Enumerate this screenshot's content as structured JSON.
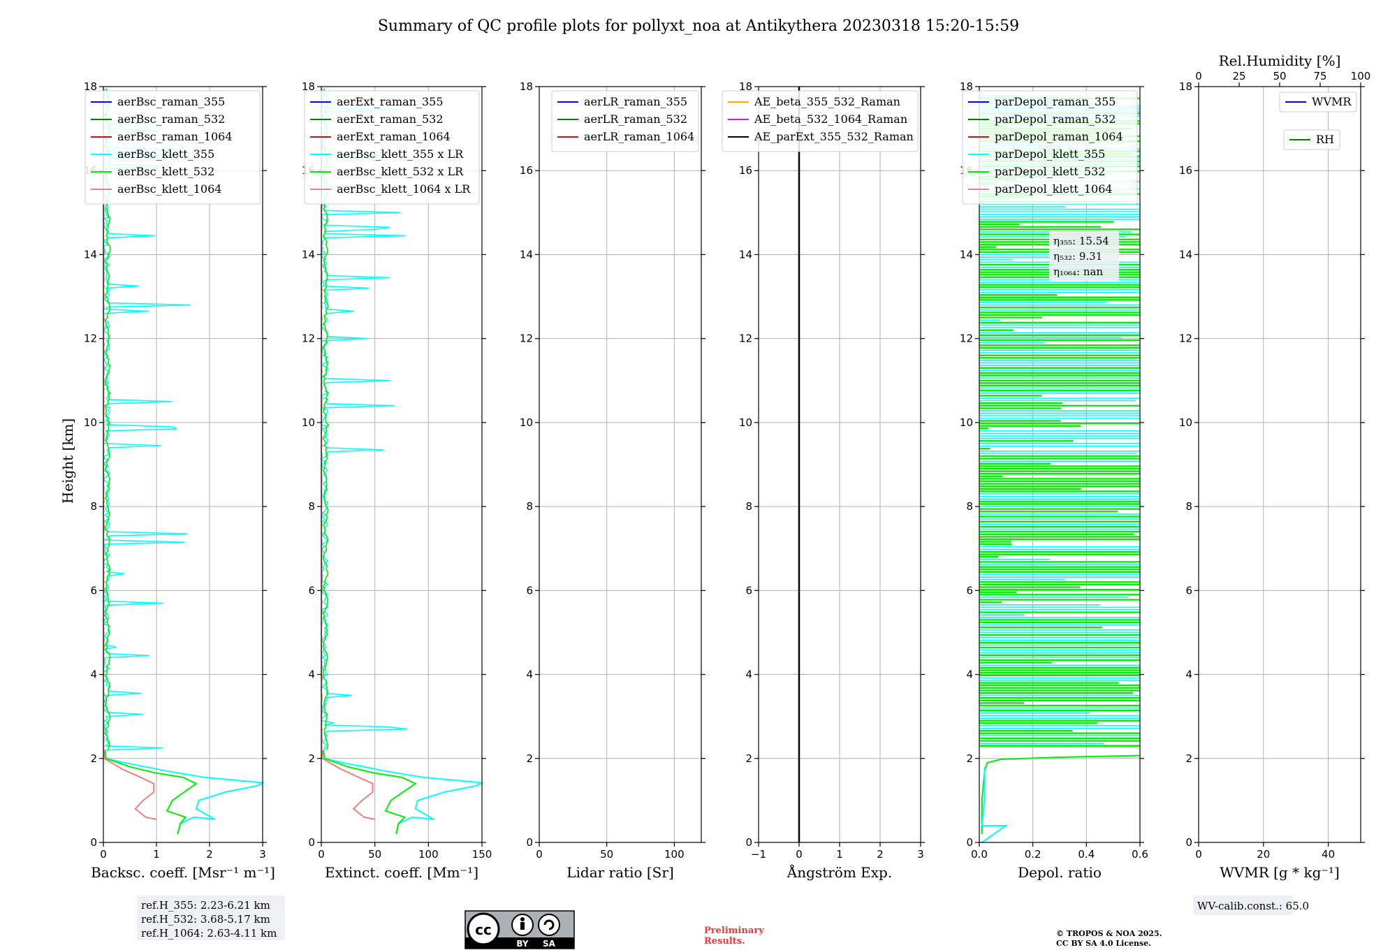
{
  "title": "Summary of QC profile plots for pollyxt_noa at Antikythera 20230318 15:20-15:59",
  "ylabel": "Height [km]",
  "yticks": [
    "0",
    "2",
    "4",
    "6",
    "8",
    "10",
    "12",
    "14",
    "16",
    "18"
  ],
  "chart_data": [
    {
      "type": "line",
      "xlabel": "Backsc. coeff. [Msr⁻¹ m⁻¹]",
      "xlim": [
        0,
        3
      ],
      "ylim": [
        0,
        18
      ],
      "xticks": [
        "0",
        "1",
        "2",
        "3"
      ],
      "legend_placement": "top-right",
      "legend": [
        "aerBsc_raman_355",
        "aerBsc_raman_532",
        "aerBsc_raman_1064",
        "aerBsc_klett_355",
        "aerBsc_klett_532",
        "aerBsc_klett_1064"
      ],
      "legend_colors": [
        "#0000ff",
        "#008000",
        "#ff0000",
        "#00ffff",
        "#00ee00",
        "#f08080"
      ],
      "series": [
        {
          "name": "aerBsc_klett_355",
          "color": "#00ffff",
          "kind": "cyan",
          "x": [
            1.4,
            1.45,
            1.7,
            2.1,
            1.75,
            1.8,
            2.3,
            2.9,
            3.0,
            1.9,
            1.2,
            0.4,
            0.05,
            0.03
          ],
          "y": [
            0.2,
            0.45,
            0.6,
            0.55,
            0.8,
            1.0,
            1.2,
            1.35,
            1.42,
            1.55,
            1.7,
            1.9,
            2.0,
            2.2
          ]
        },
        {
          "name": "aerBsc_klett_532",
          "color": "#00ee00",
          "kind": "green",
          "x": [
            1.4,
            1.45,
            1.55,
            1.2,
            1.3,
            1.75,
            1.5,
            1.0,
            0.5,
            0.05,
            0.03
          ],
          "y": [
            0.2,
            0.45,
            0.6,
            0.75,
            1.0,
            1.4,
            1.55,
            1.65,
            1.8,
            2.0,
            2.2
          ]
        },
        {
          "name": "aerBsc_klett_1064",
          "color": "#f08080",
          "kind": "red",
          "x": [
            1.0,
            0.8,
            0.6,
            0.75,
            0.95,
            0.95,
            0.7,
            0.35,
            0.02,
            0.01
          ],
          "y": [
            0.55,
            0.6,
            0.8,
            1.0,
            1.2,
            1.4,
            1.55,
            1.75,
            2.0,
            2.2
          ]
        }
      ]
    },
    {
      "type": "line",
      "xlabel": "Extinct. coeff. [Mm⁻¹]",
      "xlim": [
        0,
        150
      ],
      "ylim": [
        0,
        18
      ],
      "xticks": [
        "0",
        "50",
        "100",
        "150"
      ],
      "legend_placement": "top-right",
      "legend": [
        "aerExt_raman_355",
        "aerExt_raman_532",
        "aerExt_raman_1064",
        "aerBsc_klett_355 x LR",
        "aerBsc_klett_532 x LR",
        "aerBsc_klett_1064 x LR"
      ],
      "legend_colors": [
        "#0000ff",
        "#008000",
        "#ff0000",
        "#00ffff",
        "#00ee00",
        "#f08080"
      ],
      "series": [
        {
          "name": "aerBsc_klett_355 x LR",
          "color": "#00ffff",
          "kind": "cyan",
          "x": [
            70,
            72,
            85,
            105,
            88,
            90,
            115,
            145,
            150,
            95,
            60,
            20,
            3,
            2
          ],
          "y": [
            0.2,
            0.45,
            0.6,
            0.55,
            0.8,
            1.0,
            1.2,
            1.35,
            1.42,
            1.55,
            1.7,
            1.9,
            2.0,
            2.2
          ]
        },
        {
          "name": "aerBsc_klett_532 x LR",
          "color": "#00ee00",
          "kind": "green",
          "x": [
            70,
            72,
            78,
            60,
            65,
            88,
            75,
            50,
            25,
            3,
            2
          ],
          "y": [
            0.2,
            0.45,
            0.6,
            0.75,
            1.0,
            1.4,
            1.55,
            1.65,
            1.8,
            2.0,
            2.2
          ]
        },
        {
          "name": "aerBsc_klett_1064 x LR",
          "color": "#f08080",
          "kind": "red",
          "x": [
            50,
            40,
            30,
            38,
            48,
            48,
            35,
            18,
            1,
            1
          ],
          "y": [
            0.55,
            0.6,
            0.8,
            1.0,
            1.2,
            1.4,
            1.55,
            1.75,
            2.0,
            2.2
          ]
        }
      ]
    },
    {
      "type": "line",
      "xlabel": "Lidar ratio [Sr]",
      "xlim": [
        0,
        120
      ],
      "ylim": [
        0,
        18
      ],
      "xticks": [
        "0",
        "50",
        "100"
      ],
      "legend_placement": "top-right",
      "legend": [
        "aerLR_raman_355",
        "aerLR_raman_532",
        "aerLR_raman_1064"
      ],
      "legend_colors": [
        "#0000ff",
        "#008000",
        "#ff0000"
      ],
      "series": []
    },
    {
      "type": "line",
      "xlabel": "Ångström Exp.",
      "xlim": [
        -1,
        3
      ],
      "ylim": [
        0,
        18
      ],
      "xticks": [
        "−1",
        "0",
        "1",
        "2",
        "3"
      ],
      "legend_placement": "top-right",
      "legend": [
        "AE_beta_355_532_Raman",
        "AE_beta_532_1064_Raman",
        "AE_parExt_355_532_Raman"
      ],
      "legend_colors": [
        "#ffa500",
        "#ff00ff",
        "#000000"
      ],
      "series": [
        {
          "name": "zero-line",
          "color": "#000000",
          "kind": "black",
          "x": [
            0,
            0
          ],
          "y": [
            0,
            18
          ]
        }
      ]
    },
    {
      "type": "line",
      "xlabel": "Depol. ratio",
      "xlim": [
        0,
        0.6
      ],
      "ylim": [
        0,
        18
      ],
      "xticks": [
        "0.0",
        "0.2",
        "0.4",
        "0.6"
      ],
      "legend_placement": "top-right",
      "legend": [
        "parDepol_raman_355",
        "parDepol_raman_532",
        "parDepol_raman_1064",
        "parDepol_klett_355",
        "parDepol_klett_532",
        "parDepol_klett_1064"
      ],
      "legend_colors": [
        "#0000ff",
        "#008000",
        "#ff0000",
        "#00ffff",
        "#00ee00",
        "#f08080"
      ],
      "annotation": [
        "η₃₅₅: 15.54",
        "η₅₃₂: 9.31",
        "η₁₀₆₄: nan"
      ],
      "series": [
        {
          "name": "parDepol_klett_532",
          "color": "#00ee00",
          "kind": "green",
          "x": [
            0.01,
            0.01,
            0.02,
            0.03,
            0.08,
            0.3,
            0.6
          ],
          "y": [
            0.2,
            1.0,
            1.7,
            1.9,
            1.98,
            2.03,
            2.07
          ]
        },
        {
          "name": "parDepol_klett_355",
          "color": "#00ffff",
          "kind": "cyan",
          "x": [
            0.01,
            0.1,
            0.01,
            0.02,
            0.02
          ],
          "y": [
            0.0,
            0.4,
            0.4,
            1.0,
            1.8
          ]
        }
      ]
    },
    {
      "type": "line",
      "xlabel": "WVMR [g * kg⁻¹]",
      "xlim": [
        0,
        50
      ],
      "ylim": [
        0,
        18
      ],
      "xticks": [
        "0",
        "20",
        "40"
      ],
      "top_xlabel": "Rel.Humidity [%]",
      "top_xlim": [
        0,
        100
      ],
      "top_xticks": [
        "0",
        "25",
        "50",
        "75",
        "100"
      ],
      "legend_placement": "top-right",
      "legend": [
        "WVMR",
        "RH"
      ],
      "legend_colors": [
        "#0000ff",
        "#008000"
      ],
      "series": []
    }
  ],
  "refbox": [
    "ref.H_355: 2.23-6.21 km",
    "ref.H_532: 3.68-5.17 km",
    "ref.H_1064: 2.63-4.11 km"
  ],
  "wvcalib": "WV-calib.const.: 65.0",
  "license_badge": {
    "cc": "cc",
    "by": "BY",
    "sa": "SA"
  },
  "preliminary": [
    "Preliminary",
    "Results."
  ],
  "copyright": [
    "© TROPOS & NOA 2025.",
    "CC BY SA 4.0 License."
  ]
}
